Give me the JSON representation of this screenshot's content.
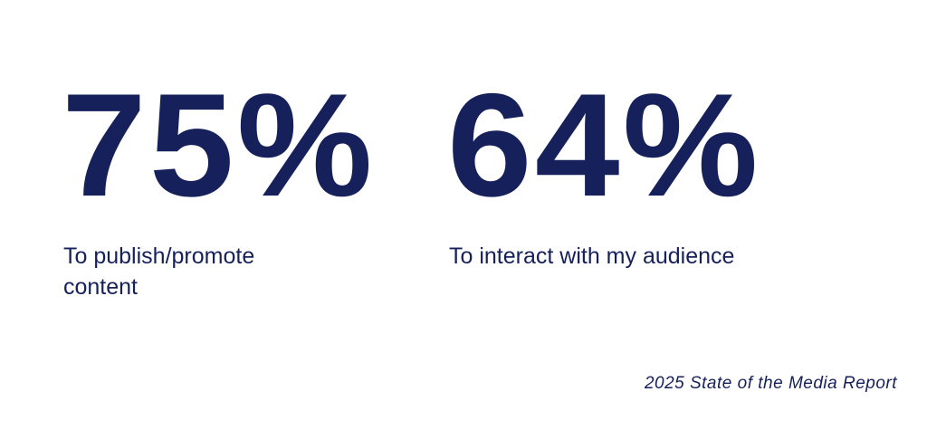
{
  "colors": {
    "accent": "#16205a",
    "background": "#ffffff"
  },
  "stats": [
    {
      "value": "75%",
      "label": "To publish/promote content"
    },
    {
      "value": "64%",
      "label": "To interact with my audience"
    }
  ],
  "source": "2025 State of the Media Report"
}
